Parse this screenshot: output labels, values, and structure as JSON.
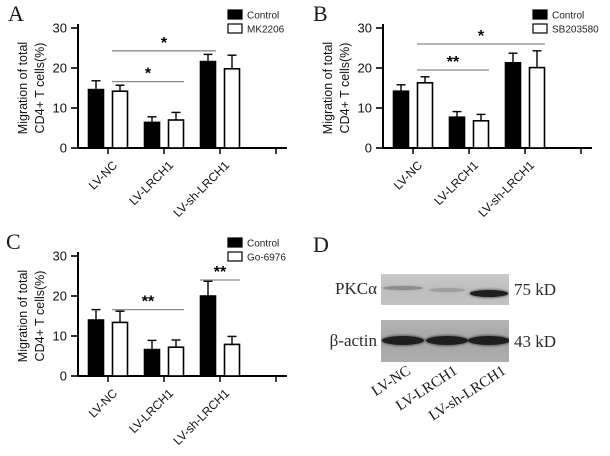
{
  "panel_labels": {
    "a": "A",
    "b": "B",
    "c": "C",
    "d": "D"
  },
  "chart_data": [
    {
      "type": "bar",
      "panel": "A",
      "title": "",
      "ylabel_line1": "Migration of total",
      "ylabel_line2": "CD4+ T cells(%)",
      "ylabel": "Migration of total CD4+ T cells(%)",
      "ylim": [
        0,
        30
      ],
      "yticks": [
        0,
        10,
        20,
        30
      ],
      "grid": false,
      "legend_position": "top-right",
      "categories": [
        "LV-NC",
        "LV-LRCH1",
        "LV-sh-LRCH1"
      ],
      "series": [
        {
          "name": "Control",
          "fill": "#000000",
          "values": [
            14.6,
            6.4,
            21.6
          ],
          "errors": [
            2.2,
            1.4,
            1.8
          ]
        },
        {
          "name": "MK2206",
          "fill": "#ffffff",
          "values": [
            14.2,
            7.0,
            19.8
          ],
          "errors": [
            1.5,
            1.9,
            3.4
          ]
        }
      ],
      "significance": [
        {
          "from_bar": 1,
          "to_bar": 3,
          "y": 16.6,
          "label": "*"
        },
        {
          "from_bar": 1,
          "to_bar": 4,
          "y": 24.3,
          "label": "*"
        }
      ]
    },
    {
      "type": "bar",
      "panel": "B",
      "title": "",
      "ylabel_line1": "Migration of total",
      "ylabel_line2": "CD4+ T cells(%)",
      "ylabel": "Migration of total CD4+ T cells(%)",
      "ylim": [
        0,
        30
      ],
      "yticks": [
        0,
        10,
        20,
        30
      ],
      "grid": false,
      "legend_position": "top-right",
      "categories": [
        "LV-NC",
        "LV-LRCH1",
        "LV-sh-LRCH1"
      ],
      "series": [
        {
          "name": "Control",
          "fill": "#000000",
          "values": [
            14.2,
            7.7,
            21.3
          ],
          "errors": [
            1.6,
            1.4,
            2.4
          ]
        },
        {
          "name": "SB203580",
          "fill": "#ffffff",
          "values": [
            16.3,
            6.8,
            20.1
          ],
          "errors": [
            1.5,
            1.6,
            4.2
          ]
        }
      ],
      "significance": [
        {
          "from_bar": 1,
          "to_bar": 3,
          "y": 19.5,
          "label": "**"
        },
        {
          "from_bar": 1,
          "to_bar": 5,
          "y": 26.0,
          "label": "*"
        }
      ]
    },
    {
      "type": "bar",
      "panel": "C",
      "title": "",
      "ylabel_line1": "Migration of total",
      "ylabel_line2": "CD4+ T cells(%)",
      "ylabel": "Migration of total CD4+ T cells(%)",
      "ylim": [
        0,
        30
      ],
      "yticks": [
        0,
        10,
        20,
        30
      ],
      "grid": false,
      "legend_position": "top-right",
      "categories": [
        "LV-NC",
        "LV-LRCH1",
        "LV-sh-LRCH1"
      ],
      "series": [
        {
          "name": "Control",
          "fill": "#000000",
          "values": [
            14.0,
            6.6,
            20.0
          ],
          "errors": [
            2.6,
            2.3,
            3.7
          ]
        },
        {
          "name": "Go-6976",
          "fill": "#ffffff",
          "values": [
            13.4,
            7.2,
            7.9
          ],
          "errors": [
            2.8,
            1.8,
            2.0
          ]
        }
      ],
      "significance": [
        {
          "from_bar": 1,
          "to_bar": 3,
          "y": 16.6,
          "label": "**"
        },
        {
          "from_bar": 4,
          "to_bar": 5,
          "y": 24.0,
          "label": "**"
        }
      ]
    }
  ],
  "western_blot": {
    "panel": "D",
    "rows": [
      {
        "protein": "PKCα",
        "mw_label": "75 kD",
        "band_intensities": [
          "faint",
          "very-faint",
          "strong"
        ]
      },
      {
        "protein": "β-actin",
        "mw_label": "43 kD",
        "band_intensities": [
          "strong",
          "strong",
          "strong"
        ]
      }
    ],
    "lanes": [
      "LV-NC",
      "LV-LRCH1",
      "LV-sh-LRCH1"
    ]
  },
  "colors": {
    "bar_filled": "#000000",
    "bar_open": "#ffffff",
    "axis": "#000000",
    "sig_line": "#8c8c8c"
  }
}
